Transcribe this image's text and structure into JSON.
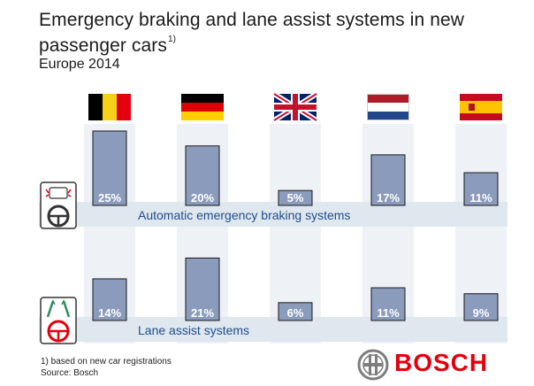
{
  "header": {
    "title": "Emergency braking and lane assist systems in new passenger cars",
    "title_note": "1)",
    "subtitle": "Europe 2014"
  },
  "countries": [
    {
      "flag": "belgium-flag"
    },
    {
      "flag": "germany-flag"
    },
    {
      "flag": "uk-flag"
    },
    {
      "flag": "netherlands-flag"
    },
    {
      "flag": "spain-flag"
    }
  ],
  "chart_data": [
    {
      "type": "bar",
      "series": [
        {
          "name": "Automatic emergency braking systems",
          "values": [
            25,
            20,
            5,
            17,
            11
          ]
        }
      ],
      "labels": [
        "25%",
        "20%",
        "5%",
        "17%",
        "11%"
      ],
      "unit": "%",
      "icon": "emergency-braking-icon"
    },
    {
      "type": "bar",
      "series": [
        {
          "name": "Lane assist systems",
          "values": [
            14,
            21,
            6,
            11,
            9
          ]
        }
      ],
      "labels": [
        "14%",
        "21%",
        "6%",
        "11%",
        "9%"
      ],
      "unit": "%",
      "icon": "lane-assist-icon"
    }
  ],
  "colors": {
    "bar_fill": "#8a9bbb",
    "bar_stroke": "#1a1a1a",
    "band": "#dfe7ef",
    "column_bg": "#eef2f6",
    "label_text": "#ffffff",
    "series_text": "#1f4e8c",
    "brand": "#e3000f"
  },
  "footer": {
    "note": "1) based on new car registrations",
    "source": "Source: Bosch",
    "brand": "BOSCH"
  }
}
